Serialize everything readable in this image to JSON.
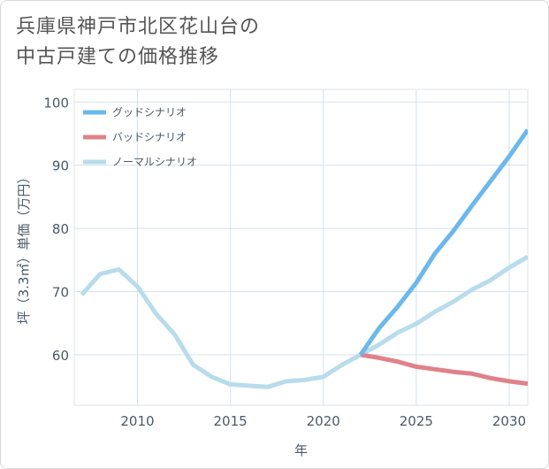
{
  "title_lines": [
    "兵庫県神戸市北区花山台の",
    "中古戸建ての価格推移"
  ],
  "chart_data": {
    "type": "line",
    "xlabel": "年",
    "ylabel": "坪（3.3㎡）単価（万円）",
    "xlim": [
      2006.6,
      2031
    ],
    "ylim": [
      52,
      102
    ],
    "x_ticks": [
      2010,
      2015,
      2020,
      2025,
      2030
    ],
    "y_ticks": [
      60,
      70,
      80,
      90,
      100
    ],
    "grid": true,
    "legend_position": "top-right",
    "series": [
      {
        "name": "グッドシナリオ",
        "color": "#6cb8ec",
        "x": [
          2022,
          2023,
          2024,
          2025,
          2026,
          2027,
          2028,
          2029,
          2030,
          2031
        ],
        "values": [
          60.0,
          64.2,
          67.6,
          71.4,
          76.0,
          79.6,
          83.6,
          87.5,
          91.4,
          95.6
        ]
      },
      {
        "name": "バッドシナリオ",
        "color": "#e0818a",
        "x": [
          2022,
          2023,
          2024,
          2025,
          2026,
          2027,
          2028,
          2029,
          2030,
          2031
        ],
        "values": [
          60.0,
          59.5,
          58.9,
          58.1,
          57.7,
          57.3,
          57.0,
          56.3,
          55.8,
          55.4
        ]
      },
      {
        "name": "ノーマルシナリオ",
        "color": "#b8dcec",
        "x": [
          2007,
          2008,
          2009,
          2010,
          2011,
          2012,
          2013,
          2014,
          2015,
          2016,
          2017,
          2018,
          2019,
          2020,
          2021,
          2022,
          2023,
          2024,
          2025,
          2026,
          2027,
          2028,
          2029,
          2030,
          2031
        ],
        "values": [
          69.5,
          72.8,
          73.5,
          70.8,
          66.5,
          63.2,
          58.4,
          56.5,
          55.3,
          55.1,
          54.9,
          55.8,
          56.0,
          56.5,
          58.4,
          60.0,
          61.6,
          63.5,
          64.9,
          66.8,
          68.4,
          70.3,
          71.8,
          73.8,
          75.5
        ]
      }
    ]
  }
}
